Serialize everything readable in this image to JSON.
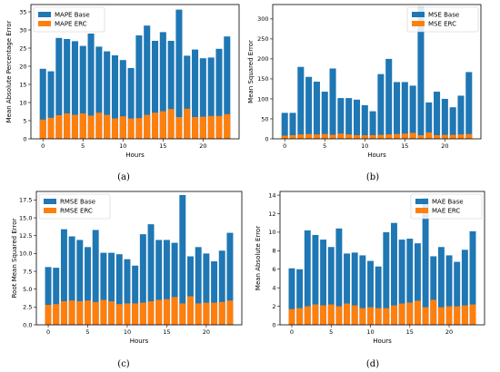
{
  "chart_data": [
    {
      "type": "bar",
      "caption": "(a)",
      "xlabel": "Hours",
      "ylabel": "Mean Absolute Percentage Error",
      "ylim": [
        0,
        37
      ],
      "xlim": [
        -1.5,
        24.5
      ],
      "xticks": [
        0,
        5,
        10,
        15,
        20
      ],
      "yticks": [
        0,
        5,
        10,
        15,
        20,
        25,
        30,
        35
      ],
      "legend": "top-left",
      "x": [
        0,
        1,
        2,
        3,
        4,
        5,
        6,
        7,
        8,
        9,
        10,
        11,
        12,
        13,
        14,
        15,
        16,
        17,
        18,
        19,
        20,
        21,
        22,
        23
      ],
      "series": [
        {
          "name": "MAPE Base",
          "color": "#1f77b4",
          "values": [
            19.3,
            18.6,
            27.8,
            27.5,
            26.9,
            25.6,
            29.0,
            25.4,
            24.1,
            23.0,
            21.7,
            19.5,
            28.5,
            31.2,
            27.0,
            29.4,
            27.0,
            35.6,
            22.9,
            24.6,
            22.2,
            22.4,
            24.8,
            28.2
          ]
        },
        {
          "name": "MAPE ERC",
          "color": "#ff7f0e",
          "values": [
            5.3,
            5.8,
            6.5,
            7.0,
            6.6,
            7.0,
            6.4,
            7.2,
            6.6,
            5.6,
            6.2,
            5.6,
            5.7,
            6.6,
            7.2,
            7.6,
            8.2,
            6.0,
            8.3,
            6.0,
            6.1,
            6.3,
            6.3,
            6.8
          ]
        }
      ]
    },
    {
      "type": "bar",
      "caption": "(b)",
      "xlabel": "Hours",
      "ylabel": "Mean Squared Error",
      "ylim": [
        0,
        336
      ],
      "xlim": [
        -1.5,
        24.5
      ],
      "xticks": [
        0,
        5,
        10,
        15,
        20
      ],
      "yticks": [
        0,
        50,
        100,
        150,
        200,
        250,
        300
      ],
      "legend": "top-right",
      "x": [
        0,
        1,
        2,
        3,
        4,
        5,
        6,
        7,
        8,
        9,
        10,
        11,
        12,
        13,
        14,
        15,
        16,
        17,
        18,
        19,
        20,
        21,
        22,
        23
      ],
      "series": [
        {
          "name": "MSE Base",
          "color": "#1f77b4",
          "values": [
            65,
            65,
            180,
            155,
            143,
            118,
            176,
            102,
            102,
            98,
            84,
            69,
            162,
            200,
            142,
            142,
            133,
            330,
            91,
            118,
            100,
            79,
            108,
            167
          ]
        },
        {
          "name": "MSE ERC",
          "color": "#ff7f0e",
          "values": [
            8,
            9,
            11,
            12,
            11,
            12,
            10,
            13,
            11,
            9,
            9,
            9,
            10,
            11,
            12,
            13,
            15,
            9,
            16,
            9,
            10,
            10,
            11,
            12
          ]
        }
      ]
    },
    {
      "type": "bar",
      "caption": "(c)",
      "xlabel": "Hours",
      "ylabel": "Root Mean Squared Error",
      "ylim": [
        0,
        18.7
      ],
      "xlim": [
        -1.5,
        24.5
      ],
      "xticks": [
        0,
        5,
        10,
        15,
        20
      ],
      "yticks": [
        0.0,
        2.5,
        5.0,
        7.5,
        10.0,
        12.5,
        15.0,
        17.5
      ],
      "ytick_labels": [
        "0.0",
        "2.5",
        "5.0",
        "7.5",
        "10.0",
        "12.5",
        "15.0",
        "17.5"
      ],
      "legend": "top-left",
      "x": [
        0,
        1,
        2,
        3,
        4,
        5,
        6,
        7,
        8,
        9,
        10,
        11,
        12,
        13,
        14,
        15,
        16,
        17,
        18,
        19,
        20,
        21,
        22,
        23
      ],
      "series": [
        {
          "name": "RMSE Base",
          "color": "#1f77b4",
          "values": [
            8.1,
            8.0,
            13.4,
            12.4,
            11.9,
            10.9,
            13.3,
            10.1,
            10.1,
            9.9,
            9.2,
            8.3,
            12.7,
            14.1,
            11.9,
            11.9,
            11.5,
            18.2,
            9.6,
            10.9,
            10.0,
            8.9,
            10.4,
            12.9
          ]
        },
        {
          "name": "RMSE ERC",
          "color": "#ff7f0e",
          "values": [
            2.8,
            2.9,
            3.3,
            3.4,
            3.3,
            3.4,
            3.2,
            3.5,
            3.3,
            2.9,
            3.0,
            3.0,
            3.1,
            3.3,
            3.5,
            3.6,
            3.9,
            3.0,
            4.0,
            3.0,
            3.1,
            3.1,
            3.2,
            3.4
          ]
        }
      ]
    },
    {
      "type": "bar",
      "caption": "(d)",
      "xlabel": "Hours",
      "ylabel": "Mean Absolute Error",
      "ylim": [
        0,
        14.4
      ],
      "xlim": [
        -1.5,
        24.5
      ],
      "xticks": [
        0,
        5,
        10,
        15,
        20
      ],
      "yticks": [
        0,
        2,
        4,
        6,
        8,
        10,
        12,
        14
      ],
      "legend": "top-right",
      "x": [
        0,
        1,
        2,
        3,
        4,
        5,
        6,
        7,
        8,
        9,
        10,
        11,
        12,
        13,
        14,
        15,
        16,
        17,
        18,
        19,
        20,
        21,
        22,
        23
      ],
      "series": [
        {
          "name": "MAE Base",
          "color": "#1f77b4",
          "values": [
            6.1,
            6.0,
            10.2,
            9.7,
            9.2,
            8.4,
            10.4,
            7.7,
            7.8,
            7.5,
            6.9,
            6.3,
            10.0,
            11.0,
            9.2,
            9.3,
            8.8,
            13.7,
            7.4,
            8.4,
            7.5,
            6.8,
            8.1,
            10.1
          ]
        },
        {
          "name": "MAE ERC",
          "color": "#ff7f0e",
          "values": [
            1.7,
            1.8,
            2.0,
            2.2,
            2.1,
            2.2,
            2.0,
            2.3,
            2.1,
            1.8,
            1.9,
            1.8,
            1.8,
            2.1,
            2.3,
            2.4,
            2.6,
            1.9,
            2.7,
            1.9,
            2.0,
            2.0,
            2.1,
            2.2
          ]
        }
      ]
    }
  ]
}
